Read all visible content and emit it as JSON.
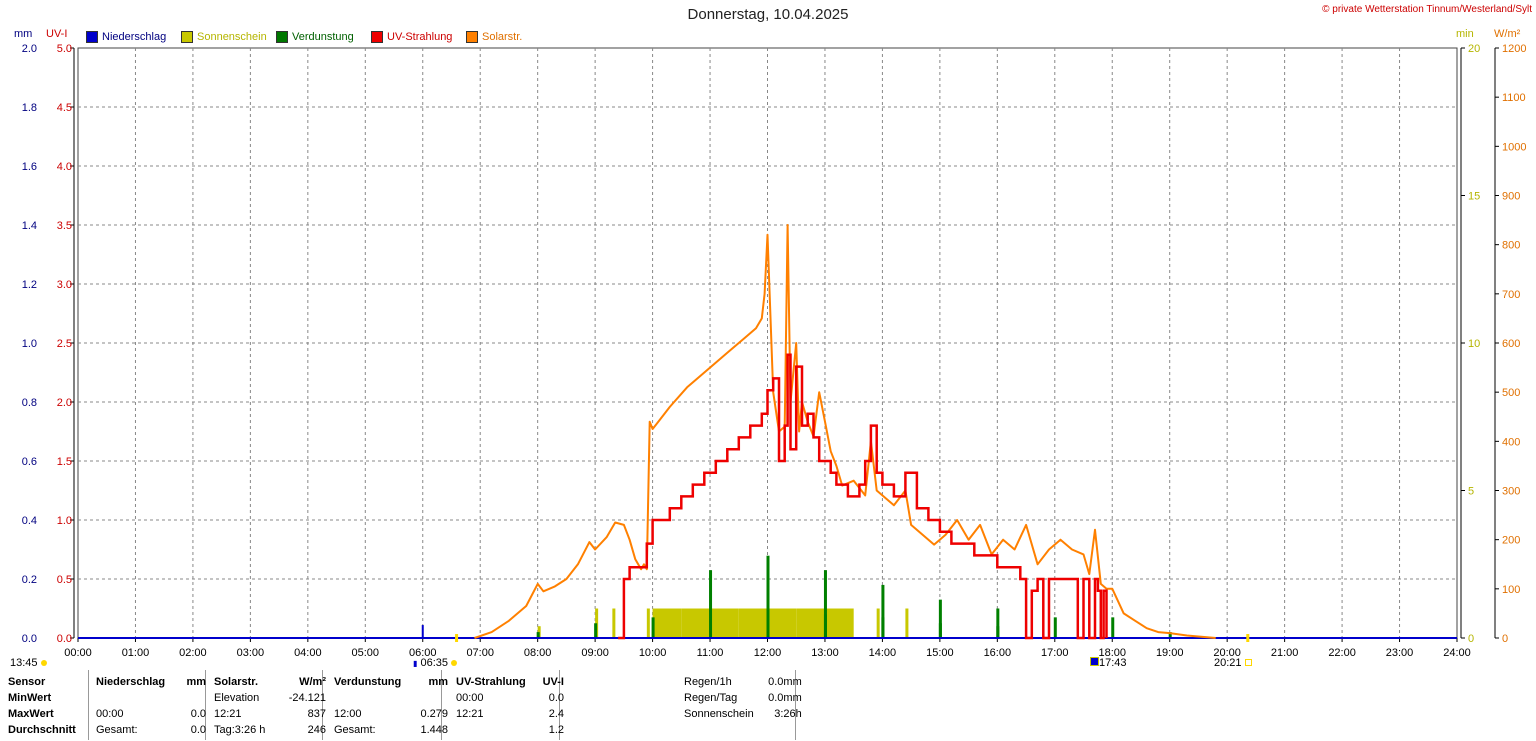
{
  "title": "Donnerstag, 10.04.2025",
  "copyright": "© private Wetterstation Tinnum/Westerland/Sylt",
  "units": {
    "mm": "mm",
    "uvi": "UV-I",
    "min": "min",
    "wm2": "W/m²"
  },
  "legend": [
    {
      "label": "Niederschlag",
      "color": "#0000cc",
      "text_color": "#000080"
    },
    {
      "label": "Sonnenschein",
      "color": "#c8c800",
      "text_color": "#b5b500"
    },
    {
      "label": "Verdunstung",
      "color": "#007700",
      "text_color": "#006000"
    },
    {
      "label": "UV-Strahlung",
      "color": "#ee0000",
      "text_color": "#cc0000"
    },
    {
      "label": "Solarstr.",
      "color": "#ff8000",
      "text_color": "#e07000"
    }
  ],
  "colors": {
    "niederschlag": "#0000cc",
    "sonnenschein": "#c8c800",
    "verdunstung": "#008000",
    "uv": "#ee0000",
    "solar": "#ff8000",
    "grid": "#888888"
  },
  "axes": {
    "x_ticks": [
      "00:00",
      "01:00",
      "02:00",
      "03:00",
      "04:00",
      "05:00",
      "06:00",
      "07:00",
      "08:00",
      "09:00",
      "10:00",
      "11:00",
      "12:00",
      "13:00",
      "14:00",
      "15:00",
      "16:00",
      "17:00",
      "18:00",
      "19:00",
      "20:00",
      "21:00",
      "22:00",
      "23:00",
      "24:00"
    ],
    "mm_ticks": [
      "0.0",
      "0.2",
      "0.4",
      "0.6",
      "0.8",
      "1.0",
      "1.2",
      "1.4",
      "1.6",
      "1.8",
      "2.0"
    ],
    "uvi_ticks": [
      "0.0",
      "0.5",
      "1.0",
      "1.5",
      "2.0",
      "2.5",
      "3.0",
      "3.5",
      "4.0",
      "4.5",
      "5.0"
    ],
    "min_ticks": [
      "0",
      "5",
      "10",
      "15",
      "20"
    ],
    "wm2_ticks": [
      "0",
      "100",
      "200",
      "300",
      "400",
      "500",
      "600",
      "700",
      "800",
      "900",
      "1000",
      "1100",
      "1200"
    ]
  },
  "sun_markers": {
    "moon_rise": "13:45",
    "sunrise": "06:35",
    "sunset": "20:21",
    "marker": "17:43"
  },
  "chart_data": {
    "type": "line",
    "x_unit": "hour",
    "xlim": [
      0,
      24
    ],
    "ylim_uvi": [
      0,
      5
    ],
    "ylim_wm2": [
      0,
      1200
    ],
    "ylim_min": [
      0,
      20
    ],
    "ylim_mm": [
      0,
      2.0
    ],
    "grid": true,
    "series": [
      {
        "name": "Solarstr.",
        "axis": "wm2",
        "x": [
          6.9,
          7.2,
          7.5,
          7.8,
          8.0,
          8.1,
          8.3,
          8.5,
          8.7,
          8.9,
          9.0,
          9.2,
          9.35,
          9.5,
          9.6,
          9.7,
          9.8,
          9.85,
          9.9,
          9.95,
          10.0,
          10.1,
          10.3,
          10.6,
          11.0,
          11.3,
          11.6,
          11.8,
          11.9,
          11.95,
          12.0,
          12.1,
          12.2,
          12.3,
          12.35,
          12.4,
          12.5,
          12.55,
          12.6,
          12.7,
          12.8,
          12.9,
          13.0,
          13.1,
          13.2,
          13.3,
          13.5,
          13.7,
          13.8,
          13.9,
          14.0,
          14.2,
          14.4,
          14.5,
          14.7,
          14.9,
          15.1,
          15.3,
          15.5,
          15.7,
          15.9,
          16.1,
          16.3,
          16.5,
          16.7,
          16.9,
          17.1,
          17.3,
          17.5,
          17.6,
          17.7,
          17.8,
          17.9,
          18.0,
          18.2,
          18.4,
          18.6,
          18.8,
          19.0,
          19.3,
          19.6,
          19.8
        ],
        "values": [
          0,
          12,
          35,
          65,
          110,
          95,
          105,
          120,
          150,
          195,
          180,
          205,
          235,
          230,
          200,
          160,
          140,
          150,
          140,
          440,
          425,
          440,
          470,
          510,
          550,
          580,
          610,
          630,
          650,
          700,
          820,
          500,
          420,
          430,
          840,
          480,
          600,
          420,
          480,
          440,
          410,
          500,
          440,
          380,
          350,
          310,
          320,
          290,
          400,
          300,
          290,
          270,
          300,
          230,
          210,
          190,
          210,
          240,
          200,
          230,
          170,
          200,
          180,
          230,
          150,
          180,
          200,
          180,
          170,
          130,
          220,
          110,
          100,
          100,
          50,
          35,
          20,
          12,
          10,
          5,
          2,
          0
        ]
      },
      {
        "name": "UV-Strahlung",
        "axis": "uvi",
        "x": [
          9.4,
          9.5,
          9.6,
          9.8,
          9.9,
          10.0,
          10.1,
          10.3,
          10.5,
          10.7,
          10.9,
          11.1,
          11.3,
          11.5,
          11.7,
          11.9,
          12.0,
          12.1,
          12.2,
          12.3,
          12.35,
          12.4,
          12.5,
          12.6,
          12.7,
          12.8,
          12.9,
          13.0,
          13.1,
          13.2,
          13.4,
          13.6,
          13.7,
          13.8,
          13.9,
          14.0,
          14.2,
          14.4,
          14.6,
          14.8,
          15.0,
          15.2,
          15.4,
          15.6,
          15.8,
          16.0,
          16.2,
          16.4,
          16.5,
          16.6,
          16.7,
          16.8,
          16.9,
          17.0,
          17.1,
          17.2,
          17.3,
          17.4,
          17.5,
          17.6,
          17.7,
          17.75,
          17.8,
          17.85,
          17.9
        ],
        "values": [
          0,
          0.5,
          0.6,
          0.6,
          0.8,
          1.0,
          1.0,
          1.1,
          1.2,
          1.3,
          1.4,
          1.5,
          1.6,
          1.7,
          1.8,
          1.9,
          2.1,
          2.2,
          1.5,
          1.8,
          2.4,
          1.6,
          2.3,
          1.8,
          1.9,
          1.7,
          1.5,
          1.5,
          1.4,
          1.3,
          1.2,
          1.3,
          1.5,
          1.8,
          1.4,
          1.3,
          1.2,
          1.4,
          1.1,
          1.0,
          0.9,
          0.8,
          0.8,
          0.7,
          0.7,
          0.6,
          0.6,
          0.5,
          0.0,
          0.4,
          0.5,
          0.0,
          0.5,
          0.5,
          0.5,
          0.5,
          0.5,
          0.0,
          0.5,
          0.0,
          0.5,
          0.4,
          0.0,
          0.4,
          0.0
        ]
      },
      {
        "name": "Sonnenschein",
        "axis": "min",
        "bars": [
          [
            8.0,
            0.4
          ],
          [
            9.0,
            1.0
          ],
          [
            9.3,
            1.0
          ],
          [
            9.9,
            1.0
          ],
          [
            10.0,
            1.0
          ],
          [
            10.5,
            1.0
          ],
          [
            11.0,
            1.0
          ],
          [
            11.5,
            1.0
          ],
          [
            12.0,
            1.0
          ],
          [
            12.5,
            1.0
          ],
          [
            13.0,
            1.0
          ],
          [
            13.3,
            1.0
          ],
          [
            13.9,
            1.0
          ],
          [
            14.4,
            1.0
          ]
        ]
      },
      {
        "name": "Verdunstung",
        "axis": "mm",
        "bars": [
          [
            8.0,
            0.02
          ],
          [
            9.0,
            0.05
          ],
          [
            10.0,
            0.07
          ],
          [
            11.0,
            0.23
          ],
          [
            12.0,
            0.279
          ],
          [
            12.0,
            0.14
          ],
          [
            13.0,
            0.23
          ],
          [
            13.0,
            0.08
          ],
          [
            14.0,
            0.18
          ],
          [
            14.0,
            0.07
          ],
          [
            15.0,
            0.13
          ],
          [
            15.0,
            0.05
          ],
          [
            16.0,
            0.1
          ],
          [
            16.0,
            0.04
          ],
          [
            17.0,
            0.07
          ],
          [
            18.0,
            0.07
          ],
          [
            19.0,
            0.02
          ]
        ]
      },
      {
        "name": "Niederschlag",
        "axis": "mm",
        "bars": [
          [
            6.0,
            0.01
          ]
        ]
      }
    ]
  },
  "stats": {
    "headers": [
      "Sensor",
      "Niederschlag",
      "mm",
      "Solarstr.",
      "W/m²",
      "Verdunstung",
      "mm",
      "UV-Strahlung",
      "UV-I"
    ],
    "rows": [
      [
        "MinWert",
        "",
        "",
        "Elevation",
        "-24.121",
        "",
        "",
        "00:00",
        "0.0"
      ],
      [
        "MaxWert",
        "00:00",
        "0.0",
        "12:21",
        "837",
        "12:00",
        "0.279",
        "12:21",
        "2.4"
      ],
      [
        "Durchschnitt",
        "Gesamt:",
        "0.0",
        "Tag:3:26 h",
        "246",
        "Gesamt:",
        "1.448",
        "",
        "1.2"
      ]
    ],
    "summary": [
      {
        "label": "Regen/1h",
        "value": "0.0mm"
      },
      {
        "label": "Regen/Tag",
        "value": "0.0mm"
      },
      {
        "label": "Sonnenschein",
        "value": "3:26h"
      }
    ]
  }
}
